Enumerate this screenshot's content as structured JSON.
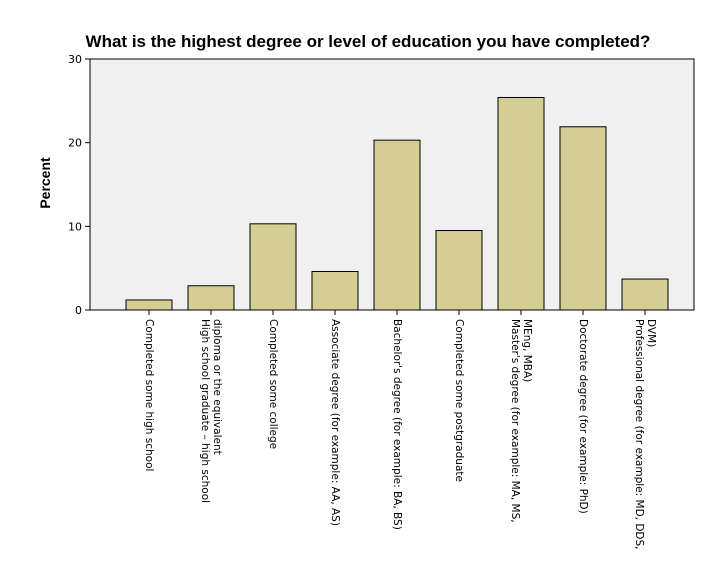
{
  "chart_data": {
    "type": "bar",
    "title": "What is the highest degree or level of education you have completed?",
    "xlabel": "",
    "ylabel": "Percent",
    "ylim": [
      0,
      30
    ],
    "yticks": [
      "0",
      "10",
      "20",
      "30"
    ],
    "grid": false,
    "categories": [
      [
        "Completed some high school"
      ],
      [
        "High school graduate – high school",
        "diploma or the equivalent"
      ],
      [
        "Completed some college"
      ],
      [
        "Associate degree (for example: AA, AS)"
      ],
      [
        "Bachelor's degree (for example: BA, BS)"
      ],
      [
        "Completed some postgraduate"
      ],
      [
        "Master's degree (for example: MA, MS,",
        "MEng, MBA)"
      ],
      [
        "Doctorate degree (for example: PhD)"
      ],
      [
        "Professional degree (for example: MD, DDS,",
        "DVM)"
      ]
    ],
    "values": [
      1.2,
      2.9,
      10.3,
      4.6,
      20.3,
      9.5,
      25.4,
      21.9,
      3.7
    ],
    "colors": {
      "bar_fill": "#d4ce95",
      "bar_stroke": "#000000",
      "plot_background": "#f0f0f0"
    }
  }
}
